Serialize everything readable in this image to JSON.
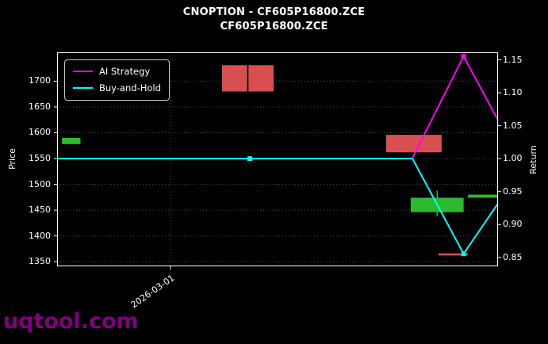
{
  "title": {
    "line1": "CNOPTION - CF605P16800.ZCE",
    "line2": "CF605P16800.ZCE"
  },
  "watermark": "uqtool.com",
  "chart_data": {
    "type": "candlestick+line",
    "title": "CNOPTION - CF605P16800.ZCE",
    "subtitle": "CF605P16800.ZCE",
    "grid": true,
    "legend_position": "upper-left",
    "colors": {
      "background": "#000000",
      "text": "#ffffff",
      "up": "#2eb82e",
      "down": "#d94f4f",
      "ai_strategy": "#ff00ff",
      "buy_and_hold": "#00ffff",
      "grid": "#4d4d4d",
      "spine": "#ffffff",
      "watermark": "#800080"
    },
    "left_axis": {
      "label": "Price",
      "range": [
        1341,
        1756
      ],
      "tick_values": [
        1700,
        1650,
        1600,
        1550,
        1500,
        1450,
        1400,
        1350
      ],
      "tick_labels": [
        "1700",
        "1650",
        "1600",
        "1550",
        "1500",
        "1450",
        "1400",
        "1350"
      ]
    },
    "right_axis": {
      "label": "Return",
      "range": [
        0.8365,
        1.1615
      ],
      "tick_values": [
        1.15,
        1.1,
        1.05,
        1.0,
        0.95,
        0.9,
        0.85
      ],
      "tick_labels": [
        "1.15",
        "1.10",
        "1.05",
        "1.00",
        "0.95",
        "0.90",
        "0.85"
      ]
    },
    "x_axis": {
      "ticks": [
        {
          "label": "2026-03-01",
          "x": 0.257
        }
      ]
    },
    "candles": [
      {
        "x0": 0.011,
        "x1": 0.053,
        "body": [
          1578,
          1590
        ],
        "dir": "up"
      },
      {
        "x0": 0.374,
        "x1": 0.431,
        "body": [
          1680,
          1731
        ],
        "dir": "down"
      },
      {
        "x0": 0.434,
        "x1": 0.491,
        "body": [
          1680,
          1731
        ],
        "dir": "down"
      },
      {
        "x0": 0.746,
        "x1": 0.872,
        "body": [
          1562,
          1596
        ],
        "dir": "down"
      },
      {
        "x0": 0.802,
        "x1": 0.922,
        "body": [
          1446,
          1474
        ],
        "wick": [
          1438,
          1488
        ],
        "dir": "up"
      },
      {
        "x0": 0.932,
        "x1": 1.0,
        "body": [
          1474,
          1480
        ],
        "dir": "up"
      },
      {
        "x0": 0.865,
        "x1": 0.932,
        "body": [
          1362,
          1366
        ],
        "dir": "down"
      }
    ],
    "series": [
      {
        "name": "AI Strategy",
        "axis": "return",
        "color": "#ff00ff",
        "points": [
          [
            0.806,
            1.001
          ],
          [
            0.922,
            1.1555
          ],
          [
            1.0,
            1.0585
          ]
        ],
        "markers": [
          [
            0.922,
            1.1555
          ]
        ]
      },
      {
        "name": "Buy-and-Hold",
        "axis": "return",
        "color": "#00ffff",
        "points": [
          [
            0.0,
            1.0
          ],
          [
            0.437,
            1.0
          ],
          [
            0.806,
            1.0
          ],
          [
            0.922,
            0.8555
          ],
          [
            1.0,
            0.932
          ]
        ],
        "markers": [
          [
            0.437,
            1.0
          ],
          [
            0.922,
            0.8555
          ]
        ]
      }
    ]
  }
}
